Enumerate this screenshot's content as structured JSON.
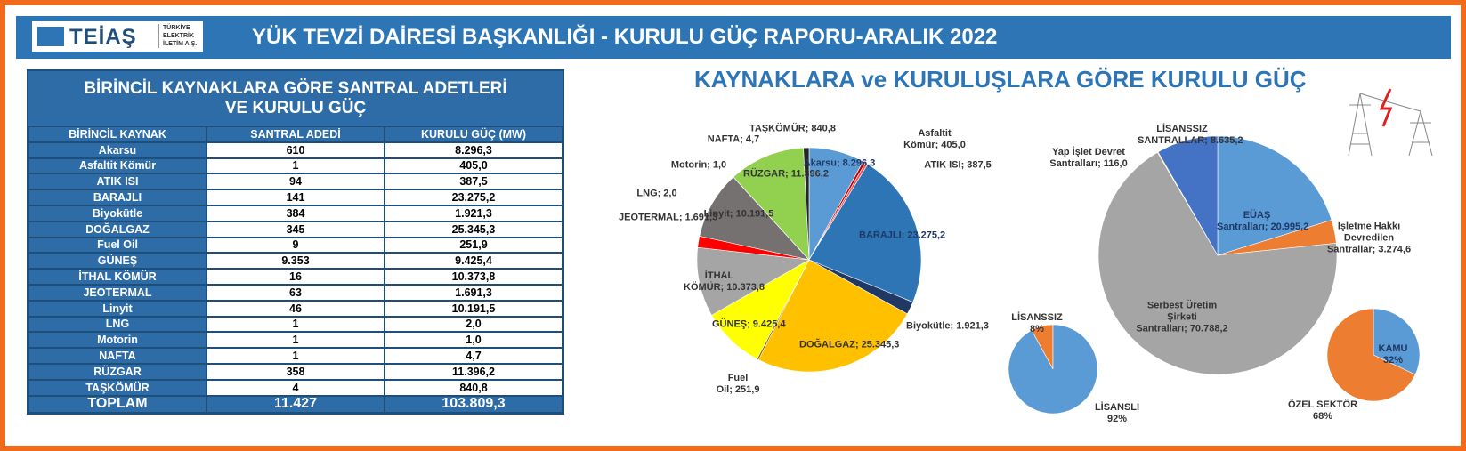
{
  "header": {
    "logo": "TEİAŞ",
    "logo_sub": [
      "TÜRKİYE",
      "ELEKTRİK",
      "İLETİM A.Ş."
    ],
    "title": "YÜK TEVZİ DAİRESİ BAŞKANLIĞI - KURULU GÜÇ RAPORU-ARALIK 2022"
  },
  "table": {
    "title": "BİRİNCİL KAYNAKLARA GÖRE SANTRAL ADETLERİ VE KURULU GÜÇ",
    "columns": [
      "BİRİNCİL KAYNAK",
      "SANTRAL ADEDİ",
      "KURULU GÜÇ (MW)"
    ],
    "rows": [
      [
        "Akarsu",
        "610",
        "8.296,3"
      ],
      [
        "Asfaltit Kömür",
        "1",
        "405,0"
      ],
      [
        "ATIK ISI",
        "94",
        "387,5"
      ],
      [
        "BARAJLI",
        "141",
        "23.275,2"
      ],
      [
        "Biyokütle",
        "384",
        "1.921,3"
      ],
      [
        "DOĞALGAZ",
        "345",
        "25.345,3"
      ],
      [
        "Fuel Oil",
        "9",
        "251,9"
      ],
      [
        "GÜNEŞ",
        "9.353",
        "9.425,4"
      ],
      [
        "İTHAL KÖMÜR",
        "16",
        "10.373,8"
      ],
      [
        "JEOTERMAL",
        "63",
        "1.691,3"
      ],
      [
        "Linyit",
        "46",
        "10.191,5"
      ],
      [
        "LNG",
        "1",
        "2,0"
      ],
      [
        "Motorin",
        "1",
        "1,0"
      ],
      [
        "NAFTA",
        "1",
        "4,7"
      ],
      [
        "RÜZGAR",
        "358",
        "11.396,2"
      ],
      [
        "TAŞKÖMÜR",
        "4",
        "840,8"
      ]
    ],
    "total": [
      "TOPLAM",
      "11.427",
      "103.809,3"
    ]
  },
  "charts_title": "KAYNAKLARA ve KURULUŞLARA GÖRE KURULU GÜÇ",
  "chart_data": [
    {
      "type": "pie",
      "categories": [
        "Akarsu;",
        "Asfaltit Kömür;",
        "ATIK ISI;",
        "BARAJLI;",
        "Biyokütle;",
        "DOĞALGAZ;",
        "Fuel Oil;",
        "GÜNEŞ;",
        "İTHAL KÖMÜR;",
        "JEOTERMAL;",
        "Linyit;",
        "LNG;",
        "Motorin;",
        "NAFTA;",
        "RÜZGAR;",
        "TAŞKÖMÜR;"
      ],
      "values": [
        8296.3,
        405.0,
        387.5,
        23275.2,
        1921.3,
        25345.3,
        251.9,
        9425.4,
        10373.8,
        1691.3,
        10191.5,
        2.0,
        1.0,
        4.7,
        11396.2,
        840.8
      ],
      "value_labels": [
        "8.296,3",
        "405,0",
        "387,5",
        "23.275,2",
        "1.921,3",
        "25.345,3",
        "251,9",
        "9.425,4",
        "10.373,8",
        "1.691,3",
        "10.191,5",
        "2,0",
        "1,0",
        "4,7",
        "11.396,2",
        "840,8"
      ],
      "colors": [
        "#5b9bd5",
        "#c00000",
        "#ff5050",
        "#2e75b6",
        "#1f3864",
        "#ffc000",
        "#7f6000",
        "#ffff00",
        "#a5a5a5",
        "#ff0000",
        "#767171",
        "#ff6600",
        "#c55a11",
        "#70ad47",
        "#92d050",
        "#262626"
      ]
    },
    {
      "type": "pie",
      "categories": [
        "EÜAŞ Santralları;",
        "İşletme Hakkı Devredilen Santrallar;",
        "Serbest Üretim Şirketi Santralları;",
        "Yap İşlet Devret Santralları;",
        "LİSANSSIZ SANTRALLAR;"
      ],
      "values": [
        20995.2,
        3274.6,
        70788.2,
        116.0,
        8635.2
      ],
      "value_labels": [
        "20.995,2",
        "3.274,6",
        "70.788,2",
        "116,0",
        "8.635,2"
      ],
      "colors": [
        "#5b9bd5",
        "#ed7d31",
        "#a5a5a5",
        "#ffc000",
        "#4472c4"
      ]
    },
    {
      "type": "pie",
      "categories": [
        "LİSANSSIZ",
        "LİSANSLI"
      ],
      "values": [
        8,
        92
      ],
      "value_labels": [
        "8%",
        "92%"
      ],
      "colors": [
        "#ed7d31",
        "#5b9bd5"
      ]
    },
    {
      "type": "pie",
      "categories": [
        "KAMU",
        "ÖZEL SEKTÖR"
      ],
      "values": [
        32,
        68
      ],
      "value_labels": [
        "32%",
        "68%"
      ],
      "colors": [
        "#5b9bd5",
        "#ed7d31"
      ]
    }
  ]
}
